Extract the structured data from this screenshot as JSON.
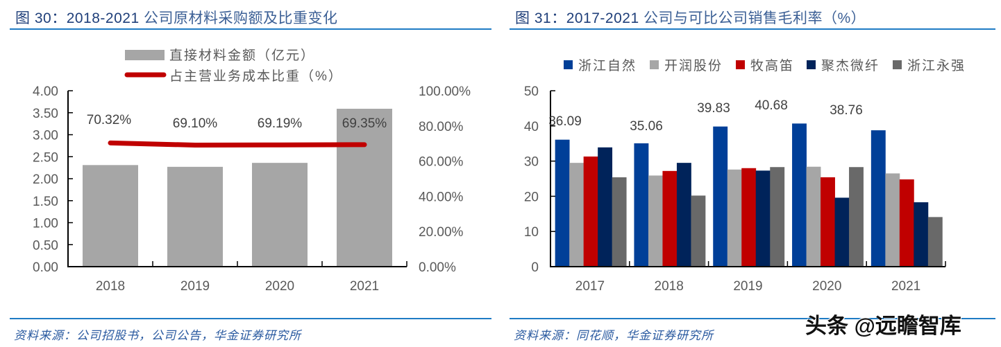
{
  "left": {
    "title_prefix": "图 30：2018-2021",
    "title_text": "公司原材料采购额及比重变化",
    "source": "资料来源：公司招股书，公司公告，华金证券研究所",
    "legend": {
      "bar_label": "直接材料金额（亿元）",
      "line_label": "占主营业务成本比重（%）"
    },
    "y_left_ticks": [
      "0.00",
      "0.50",
      "1.00",
      "1.50",
      "2.00",
      "2.50",
      "3.00",
      "3.50",
      "4.00"
    ],
    "y_right_ticks": [
      "0.00%",
      "20.00%",
      "40.00%",
      "60.00%",
      "80.00%",
      "100.00%"
    ],
    "categories": [
      "2018",
      "2019",
      "2020",
      "2021"
    ],
    "line_labels": [
      "70.32%",
      "69.10%",
      "69.19%",
      "69.35%"
    ]
  },
  "right": {
    "title_prefix": "图 31：2017-2021",
    "title_text": "公司与可比公司销售毛利率（%）",
    "source": "资料来源：同花顺，华金证券研究所",
    "legend": [
      "浙江自然",
      "开润股份",
      "牧高笛",
      "聚杰微纤",
      "浙江永强"
    ],
    "y_ticks": [
      "0",
      "10",
      "20",
      "30",
      "40",
      "50"
    ],
    "categories": [
      "2017",
      "2018",
      "2019",
      "2020",
      "2021"
    ],
    "data_labels": [
      "36.09",
      "35.06",
      "39.83",
      "40.68",
      "38.76"
    ]
  },
  "watermark": "头条 @远瞻智库",
  "colors": {
    "title_rule": "#1e7bc4",
    "bar_grey": "#a6a6a6",
    "line_red": "#c00000",
    "series": [
      "#003f98",
      "#a6a6a6",
      "#c00000",
      "#00235a",
      "#696969"
    ]
  },
  "chart_data": [
    {
      "type": "bar",
      "title": "图 30：2018-2021 公司原材料采购额及比重变化",
      "categories": [
        "2018",
        "2019",
        "2020",
        "2021"
      ],
      "series": [
        {
          "name": "直接材料金额（亿元）",
          "type": "bar",
          "axis": "left",
          "values": [
            2.31,
            2.27,
            2.36,
            3.59
          ]
        },
        {
          "name": "占主营业务成本比重（%）",
          "type": "line",
          "axis": "right",
          "values": [
            70.32,
            69.1,
            69.19,
            69.35
          ]
        }
      ],
      "xlabel": "",
      "ylabel": "",
      "ylim": [
        0,
        4.0
      ],
      "y2lim": [
        0,
        100
      ],
      "legend_position": "top",
      "grid": false
    },
    {
      "type": "bar",
      "title": "图 31：2017-2021 公司与可比公司销售毛利率（%）",
      "categories": [
        "2017",
        "2018",
        "2019",
        "2020",
        "2021"
      ],
      "series": [
        {
          "name": "浙江自然",
          "values": [
            36.09,
            35.06,
            39.83,
            40.68,
            38.76
          ]
        },
        {
          "name": "开润股份",
          "values": [
            29.5,
            25.9,
            27.6,
            28.4,
            26.5
          ]
        },
        {
          "name": "牧高笛",
          "values": [
            31.3,
            27.2,
            28.0,
            25.4,
            24.8
          ]
        },
        {
          "name": "聚杰微纤",
          "values": [
            33.9,
            29.5,
            27.3,
            19.6,
            18.3
          ]
        },
        {
          "name": "浙江永强",
          "values": [
            25.4,
            20.2,
            28.3,
            28.3,
            14.1
          ]
        }
      ],
      "xlabel": "",
      "ylabel": "",
      "ylim": [
        0,
        50
      ],
      "legend_position": "top",
      "grid": false
    }
  ]
}
